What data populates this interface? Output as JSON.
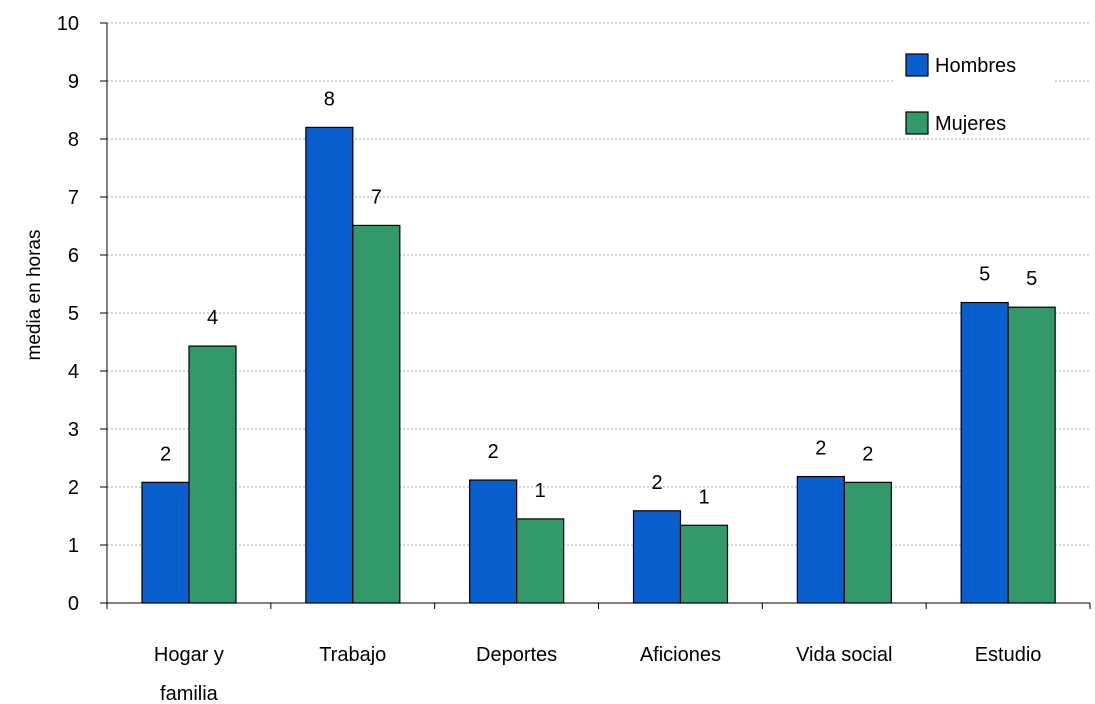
{
  "chart_data": {
    "type": "bar",
    "title": "",
    "xlabel": "",
    "ylabel": "media en horas",
    "ylim": [
      0,
      10
    ],
    "yticks": [
      "0",
      "1",
      "2",
      "3",
      "4",
      "5",
      "6",
      "7",
      "8",
      "9",
      "10"
    ],
    "grid": true,
    "legend_position": "top-right",
    "categories": [
      [
        "Hogar y",
        "familia"
      ],
      [
        "Trabajo"
      ],
      [
        "Deportes"
      ],
      [
        "Aficiones"
      ],
      [
        "Vida social"
      ],
      [
        "Estudio"
      ]
    ],
    "series": [
      {
        "name": "Hombres",
        "color": "#0a5fcf",
        "values": [
          2.08,
          8.2,
          2.12,
          1.59,
          2.18,
          5.18
        ],
        "labels": [
          "2",
          "8",
          "2",
          "2",
          "2",
          "5"
        ]
      },
      {
        "name": "Mujeres",
        "color": "#33996a",
        "values": [
          4.43,
          6.51,
          1.45,
          1.34,
          2.08,
          5.1
        ],
        "labels": [
          "4",
          "7",
          "1",
          "1",
          "2",
          "5"
        ]
      }
    ]
  }
}
